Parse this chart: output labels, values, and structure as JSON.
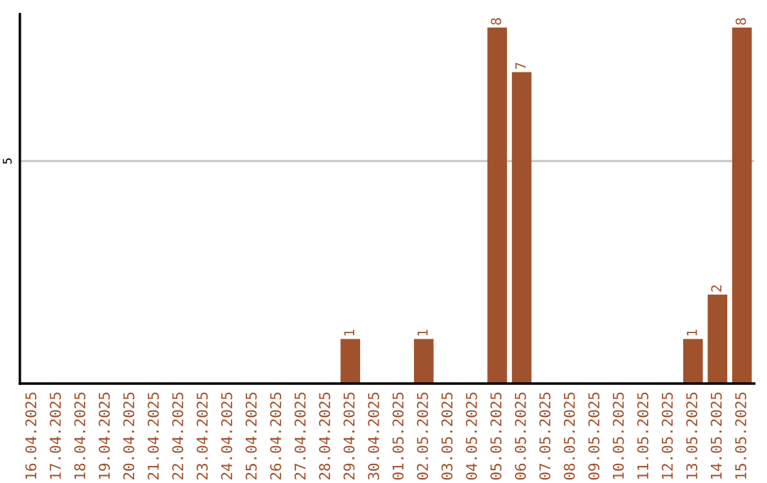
{
  "chart_data": {
    "type": "bar",
    "ylim": [
      0,
      8.3
    ],
    "categories": [
      "16.04.2025",
      "17.04.2025",
      "18.04.2025",
      "19.04.2025",
      "20.04.2025",
      "21.04.2025",
      "22.04.2025",
      "23.04.2025",
      "24.04.2025",
      "25.04.2025",
      "26.04.2025",
      "27.04.2025",
      "28.04.2025",
      "29.04.2025",
      "30.04.2025",
      "01.05.2025",
      "02.05.2025",
      "03.05.2025",
      "04.05.2025",
      "05.05.2025",
      "06.05.2025",
      "07.05.2025",
      "08.05.2025",
      "09.05.2025",
      "10.05.2025",
      "11.05.2025",
      "12.05.2025",
      "13.05.2025",
      "14.05.2025",
      "15.05.2025"
    ],
    "values": [
      null,
      null,
      null,
      null,
      null,
      null,
      null,
      null,
      null,
      null,
      null,
      null,
      null,
      1,
      null,
      null,
      1,
      null,
      null,
      8,
      7,
      null,
      null,
      null,
      null,
      null,
      null,
      1,
      2,
      8
    ],
    "value_labels": [
      null,
      null,
      null,
      null,
      null,
      null,
      null,
      null,
      null,
      null,
      null,
      null,
      null,
      "1",
      null,
      null,
      "1",
      null,
      null,
      "8",
      "7",
      null,
      null,
      null,
      null,
      null,
      null,
      "1",
      "2",
      "8"
    ],
    "color": "#a0522d",
    "ref_lines": [
      {
        "axis": "y",
        "value": 5,
        "label": "5",
        "color": "#c8c8c8"
      }
    ]
  }
}
